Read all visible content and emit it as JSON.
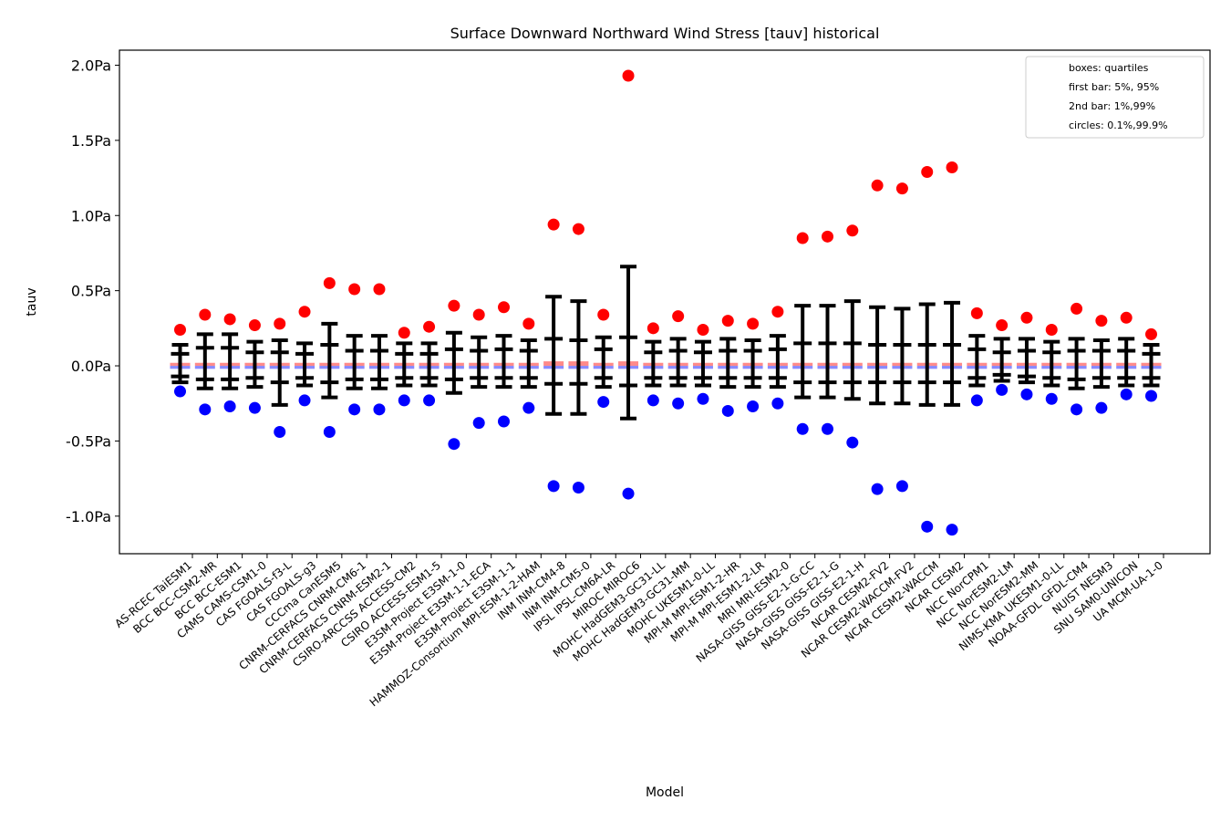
{
  "chart_data": {
    "type": "scatter",
    "title": "Surface Downward Northward Wind Stress [tauv] historical",
    "xlabel": "Model",
    "ylabel": "tauv",
    "ylim": [
      -1.25,
      2.1
    ],
    "y_ticks": [
      {
        "value": 2.0,
        "label": "2.0Pa"
      },
      {
        "value": 1.5,
        "label": "1.5Pa"
      },
      {
        "value": 1.0,
        "label": "1.0Pa"
      },
      {
        "value": 0.5,
        "label": "0.5Pa"
      },
      {
        "value": 0.0,
        "label": "0.0Pa"
      },
      {
        "value": -0.5,
        "label": "-0.5Pa"
      },
      {
        "value": -1.0,
        "label": "-1.0Pa"
      }
    ],
    "legend": {
      "position": "top-right",
      "lines": [
        "boxes: quartiles",
        "first bar: 5%, 95%",
        "2nd bar: 1%,99%",
        "circles: 0.1%,99.9%"
      ]
    },
    "colors": {
      "max_circle": "#ff0000",
      "min_circle": "#0000ff",
      "upper_box": "#ff8a8a",
      "lower_box": "#8a8aff",
      "whisker": "#000000"
    },
    "models": [
      {
        "name": "AS-RCEC TaiESM1",
        "p001": -0.17,
        "p01": -0.11,
        "p05": -0.07,
        "q1": -0.02,
        "q3": 0.02,
        "p95": 0.08,
        "p99": 0.14,
        "p999": 0.24
      },
      {
        "name": "BCC BCC-CSM2-MR",
        "p001": -0.29,
        "p01": -0.15,
        "p05": -0.09,
        "q1": -0.02,
        "q3": 0.02,
        "p95": 0.12,
        "p99": 0.21,
        "p999": 0.34
      },
      {
        "name": "BCC BCC-ESM1",
        "p001": -0.27,
        "p01": -0.15,
        "p05": -0.09,
        "q1": -0.02,
        "q3": 0.02,
        "p95": 0.12,
        "p99": 0.21,
        "p999": 0.31
      },
      {
        "name": "CAMS CAMS-CSM1-0",
        "p001": -0.28,
        "p01": -0.14,
        "p05": -0.08,
        "q1": -0.02,
        "q3": 0.02,
        "p95": 0.09,
        "p99": 0.16,
        "p999": 0.27
      },
      {
        "name": "CAS FGOALS-f3-L",
        "p001": -0.44,
        "p01": -0.26,
        "p05": -0.11,
        "q1": -0.02,
        "q3": 0.02,
        "p95": 0.09,
        "p99": 0.17,
        "p999": 0.28
      },
      {
        "name": "CAS FGOALS-g3",
        "p001": -0.23,
        "p01": -0.13,
        "p05": -0.08,
        "q1": -0.02,
        "q3": 0.02,
        "p95": 0.08,
        "p99": 0.15,
        "p999": 0.36
      },
      {
        "name": "CCCma CanESM5",
        "p001": -0.44,
        "p01": -0.21,
        "p05": -0.11,
        "q1": -0.02,
        "q3": 0.02,
        "p95": 0.14,
        "p99": 0.28,
        "p999": 0.55
      },
      {
        "name": "CNRM-CERFACS CNRM-CM6-1",
        "p001": -0.29,
        "p01": -0.15,
        "p05": -0.09,
        "q1": -0.02,
        "q3": 0.02,
        "p95": 0.1,
        "p99": 0.2,
        "p999": 0.51
      },
      {
        "name": "CNRM-CERFACS CNRM-ESM2-1",
        "p001": -0.29,
        "p01": -0.15,
        "p05": -0.09,
        "q1": -0.02,
        "q3": 0.02,
        "p95": 0.1,
        "p99": 0.2,
        "p999": 0.51
      },
      {
        "name": "CSIRO-ARCCSS ACCESS-CM2",
        "p001": -0.23,
        "p01": -0.13,
        "p05": -0.08,
        "q1": -0.02,
        "q3": 0.02,
        "p95": 0.08,
        "p99": 0.15,
        "p999": 0.22
      },
      {
        "name": "CSIRO ACCESS-ESM1-5",
        "p001": -0.23,
        "p01": -0.13,
        "p05": -0.08,
        "q1": -0.02,
        "q3": 0.02,
        "p95": 0.08,
        "p99": 0.15,
        "p999": 0.26
      },
      {
        "name": "E3SM-Project E3SM-1-0",
        "p001": -0.52,
        "p01": -0.18,
        "p05": -0.09,
        "q1": -0.02,
        "q3": 0.02,
        "p95": 0.11,
        "p99": 0.22,
        "p999": 0.4
      },
      {
        "name": "E3SM-Project E3SM-1-1-ECA",
        "p001": -0.38,
        "p01": -0.14,
        "p05": -0.08,
        "q1": -0.02,
        "q3": 0.02,
        "p95": 0.1,
        "p99": 0.19,
        "p999": 0.34
      },
      {
        "name": "E3SM-Project E3SM-1-1",
        "p001": -0.37,
        "p01": -0.14,
        "p05": -0.08,
        "q1": -0.02,
        "q3": 0.02,
        "p95": 0.11,
        "p99": 0.2,
        "p999": 0.39
      },
      {
        "name": "HAMMOZ-Consortium MPI-ESM-1-2-HAM",
        "p001": -0.28,
        "p01": -0.14,
        "p05": -0.08,
        "q1": -0.02,
        "q3": 0.02,
        "p95": 0.1,
        "p99": 0.17,
        "p999": 0.28
      },
      {
        "name": "INM INM-CM4-8",
        "p001": -0.8,
        "p01": -0.32,
        "p05": -0.12,
        "q1": -0.02,
        "q3": 0.03,
        "p95": 0.18,
        "p99": 0.46,
        "p999": 0.94
      },
      {
        "name": "INM INM-CM5-0",
        "p001": -0.81,
        "p01": -0.32,
        "p05": -0.12,
        "q1": -0.02,
        "q3": 0.03,
        "p95": 0.17,
        "p99": 0.43,
        "p999": 0.91
      },
      {
        "name": "IPSL IPSL-CM6A-LR",
        "p001": -0.24,
        "p01": -0.14,
        "p05": -0.08,
        "q1": -0.02,
        "q3": 0.02,
        "p95": 0.11,
        "p99": 0.19,
        "p999": 0.34
      },
      {
        "name": "MIROC MIROC6",
        "p001": -0.85,
        "p01": -0.35,
        "p05": -0.13,
        "q1": -0.02,
        "q3": 0.03,
        "p95": 0.19,
        "p99": 0.66,
        "p999": 1.93
      },
      {
        "name": "MOHC HadGEM3-GC31-LL",
        "p001": -0.23,
        "p01": -0.13,
        "p05": -0.08,
        "q1": -0.02,
        "q3": 0.02,
        "p95": 0.09,
        "p99": 0.16,
        "p999": 0.25
      },
      {
        "name": "MOHC HadGEM3-GC31-MM",
        "p001": -0.25,
        "p01": -0.13,
        "p05": -0.08,
        "q1": -0.02,
        "q3": 0.02,
        "p95": 0.1,
        "p99": 0.18,
        "p999": 0.33
      },
      {
        "name": "MOHC UKESM1-0-LL",
        "p001": -0.22,
        "p01": -0.13,
        "p05": -0.08,
        "q1": -0.02,
        "q3": 0.02,
        "p95": 0.09,
        "p99": 0.16,
        "p999": 0.24
      },
      {
        "name": "MPI-M MPI-ESM1-2-HR",
        "p001": -0.3,
        "p01": -0.14,
        "p05": -0.08,
        "q1": -0.02,
        "q3": 0.02,
        "p95": 0.1,
        "p99": 0.18,
        "p999": 0.3
      },
      {
        "name": "MPI-M MPI-ESM1-2-LR",
        "p001": -0.27,
        "p01": -0.14,
        "p05": -0.08,
        "q1": -0.02,
        "q3": 0.02,
        "p95": 0.1,
        "p99": 0.17,
        "p999": 0.28
      },
      {
        "name": "MRI MRI-ESM2-0",
        "p001": -0.25,
        "p01": -0.14,
        "p05": -0.08,
        "q1": -0.02,
        "q3": 0.02,
        "p95": 0.11,
        "p99": 0.2,
        "p999": 0.36
      },
      {
        "name": "NASA-GISS GISS-E2-1-G-CC",
        "p001": -0.42,
        "p01": -0.21,
        "p05": -0.11,
        "q1": -0.02,
        "q3": 0.02,
        "p95": 0.15,
        "p99": 0.4,
        "p999": 0.85
      },
      {
        "name": "NASA-GISS GISS-E2-1-G",
        "p001": -0.42,
        "p01": -0.21,
        "p05": -0.11,
        "q1": -0.02,
        "q3": 0.02,
        "p95": 0.15,
        "p99": 0.4,
        "p999": 0.86
      },
      {
        "name": "NASA-GISS GISS-E2-1-H",
        "p001": -0.51,
        "p01": -0.22,
        "p05": -0.11,
        "q1": -0.02,
        "q3": 0.02,
        "p95": 0.15,
        "p99": 0.43,
        "p999": 0.9
      },
      {
        "name": "NCAR CESM2-FV2",
        "p001": -0.82,
        "p01": -0.25,
        "p05": -0.11,
        "q1": -0.02,
        "q3": 0.02,
        "p95": 0.14,
        "p99": 0.39,
        "p999": 1.2
      },
      {
        "name": "NCAR CESM2-WACCM-FV2",
        "p001": -0.8,
        "p01": -0.25,
        "p05": -0.11,
        "q1": -0.02,
        "q3": 0.02,
        "p95": 0.14,
        "p99": 0.38,
        "p999": 1.18
      },
      {
        "name": "NCAR CESM2-WACCM",
        "p001": -1.07,
        "p01": -0.26,
        "p05": -0.11,
        "q1": -0.02,
        "q3": 0.02,
        "p95": 0.14,
        "p99": 0.41,
        "p999": 1.29
      },
      {
        "name": "NCAR CESM2",
        "p001": -1.09,
        "p01": -0.26,
        "p05": -0.11,
        "q1": -0.02,
        "q3": 0.02,
        "p95": 0.14,
        "p99": 0.42,
        "p999": 1.32
      },
      {
        "name": "NCC NorCPM1",
        "p001": -0.23,
        "p01": -0.13,
        "p05": -0.08,
        "q1": -0.02,
        "q3": 0.02,
        "p95": 0.11,
        "p99": 0.2,
        "p999": 0.35
      },
      {
        "name": "NCC NorESM2-LM",
        "p001": -0.16,
        "p01": -0.1,
        "p05": -0.06,
        "q1": -0.02,
        "q3": 0.02,
        "p95": 0.09,
        "p99": 0.18,
        "p999": 0.27
      },
      {
        "name": "NCC NorESM2-MM",
        "p001": -0.19,
        "p01": -0.11,
        "p05": -0.07,
        "q1": -0.02,
        "q3": 0.02,
        "p95": 0.1,
        "p99": 0.18,
        "p999": 0.32
      },
      {
        "name": "NIMS-KMA UKESM1-0-LL",
        "p001": -0.22,
        "p01": -0.13,
        "p05": -0.08,
        "q1": -0.02,
        "q3": 0.02,
        "p95": 0.09,
        "p99": 0.16,
        "p999": 0.24
      },
      {
        "name": "NOAA-GFDL GFDL-CM4",
        "p001": -0.29,
        "p01": -0.15,
        "p05": -0.09,
        "q1": -0.02,
        "q3": 0.02,
        "p95": 0.1,
        "p99": 0.18,
        "p999": 0.38
      },
      {
        "name": "NUIST NESM3",
        "p001": -0.28,
        "p01": -0.14,
        "p05": -0.08,
        "q1": -0.02,
        "q3": 0.02,
        "p95": 0.1,
        "p99": 0.17,
        "p999": 0.3
      },
      {
        "name": "SNU SAM0-UNICON",
        "p001": -0.19,
        "p01": -0.13,
        "p05": -0.08,
        "q1": -0.02,
        "q3": 0.02,
        "p95": 0.1,
        "p99": 0.18,
        "p999": 0.32
      },
      {
        "name": "UA MCM-UA-1-0",
        "p001": -0.2,
        "p01": -0.13,
        "p05": -0.08,
        "q1": -0.02,
        "q3": 0.02,
        "p95": 0.08,
        "p99": 0.14,
        "p999": 0.21
      }
    ]
  }
}
